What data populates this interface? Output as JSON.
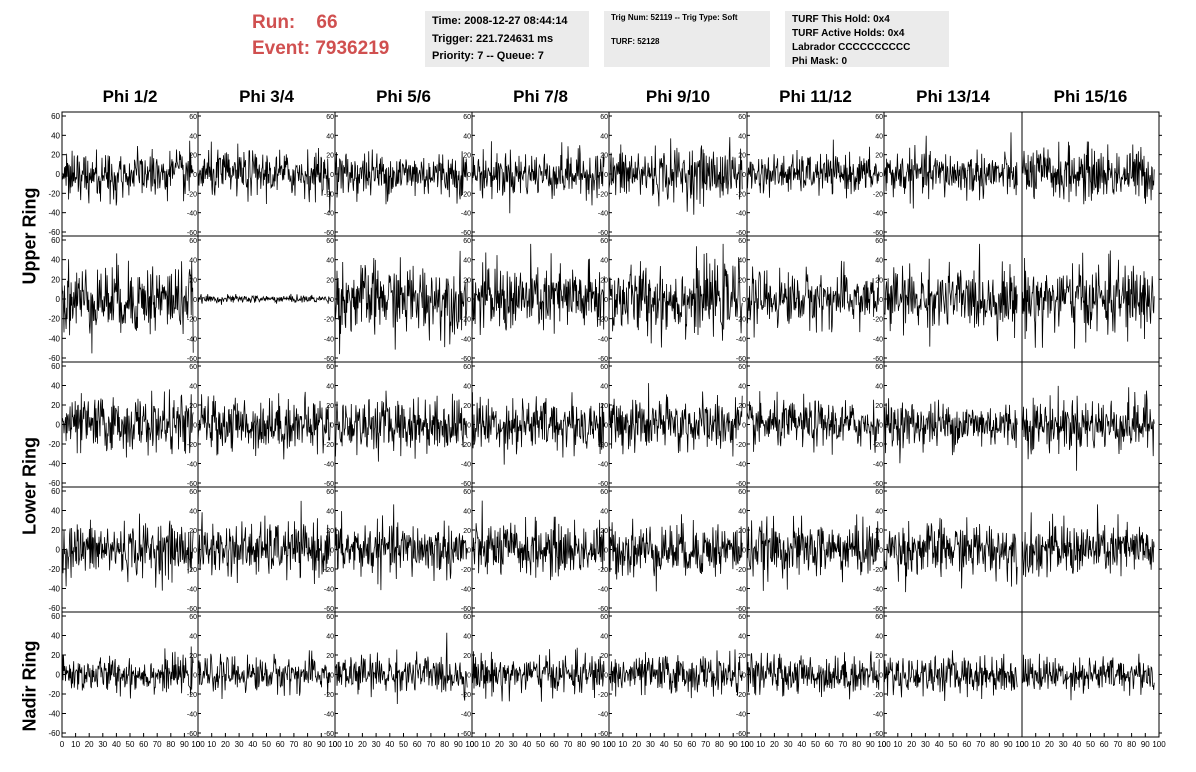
{
  "header": {
    "run_label": "Run:",
    "run_value": "66",
    "event_label": "Event:",
    "event_value": "7936219",
    "time_line": "Time: 2008-12-27 08:44:14",
    "trigger_line": "Trigger: 221.724631 ms",
    "priority_line": "Priority: 7 -- Queue: 7",
    "trig_line": "Trig Num: 52119 -- Trig Type: Soft",
    "turf_line": "TURF: 52128",
    "hold_line": "TURF This Hold: 0x4",
    "active_line": "TURF Active Holds: 0x4",
    "labrador_line": "Labrador CCCCCCCCCC",
    "phimask_line": "Phi Mask: 0"
  },
  "columns": [
    "Phi 1/2",
    "Phi 3/4",
    "Phi 5/6",
    "Phi 7/8",
    "Phi 9/10",
    "Phi 11/12",
    "Phi 13/14",
    "Phi 15/16"
  ],
  "rings": [
    "Upper Ring",
    "Lower Ring",
    "Nadir Ring"
  ],
  "colors": {
    "trace": "#000000",
    "frame": "#000000",
    "header_accent": "#d05050",
    "info_bg": "#ebebeb"
  },
  "chart_data": {
    "type": "line",
    "rows": 5,
    "cols": 8,
    "xlim": [
      0,
      100
    ],
    "ylim": [
      -60,
      60
    ],
    "x_ticks": [
      0,
      10,
      20,
      30,
      40,
      50,
      60,
      70,
      80,
      90,
      100
    ],
    "y_ticks": [
      60,
      40,
      20,
      0,
      -20,
      -40,
      -60
    ],
    "samples_per_trace": 260,
    "trace_amplitude": [
      [
        12,
        12,
        12,
        12,
        14,
        10,
        12,
        14
      ],
      [
        18,
        2,
        18,
        18,
        18,
        14,
        16,
        18
      ],
      [
        14,
        14,
        14,
        14,
        14,
        12,
        12,
        14
      ],
      [
        14,
        14,
        14,
        14,
        14,
        14,
        14,
        14
      ],
      [
        9,
        9,
        10,
        10,
        10,
        10,
        10,
        9
      ]
    ]
  }
}
